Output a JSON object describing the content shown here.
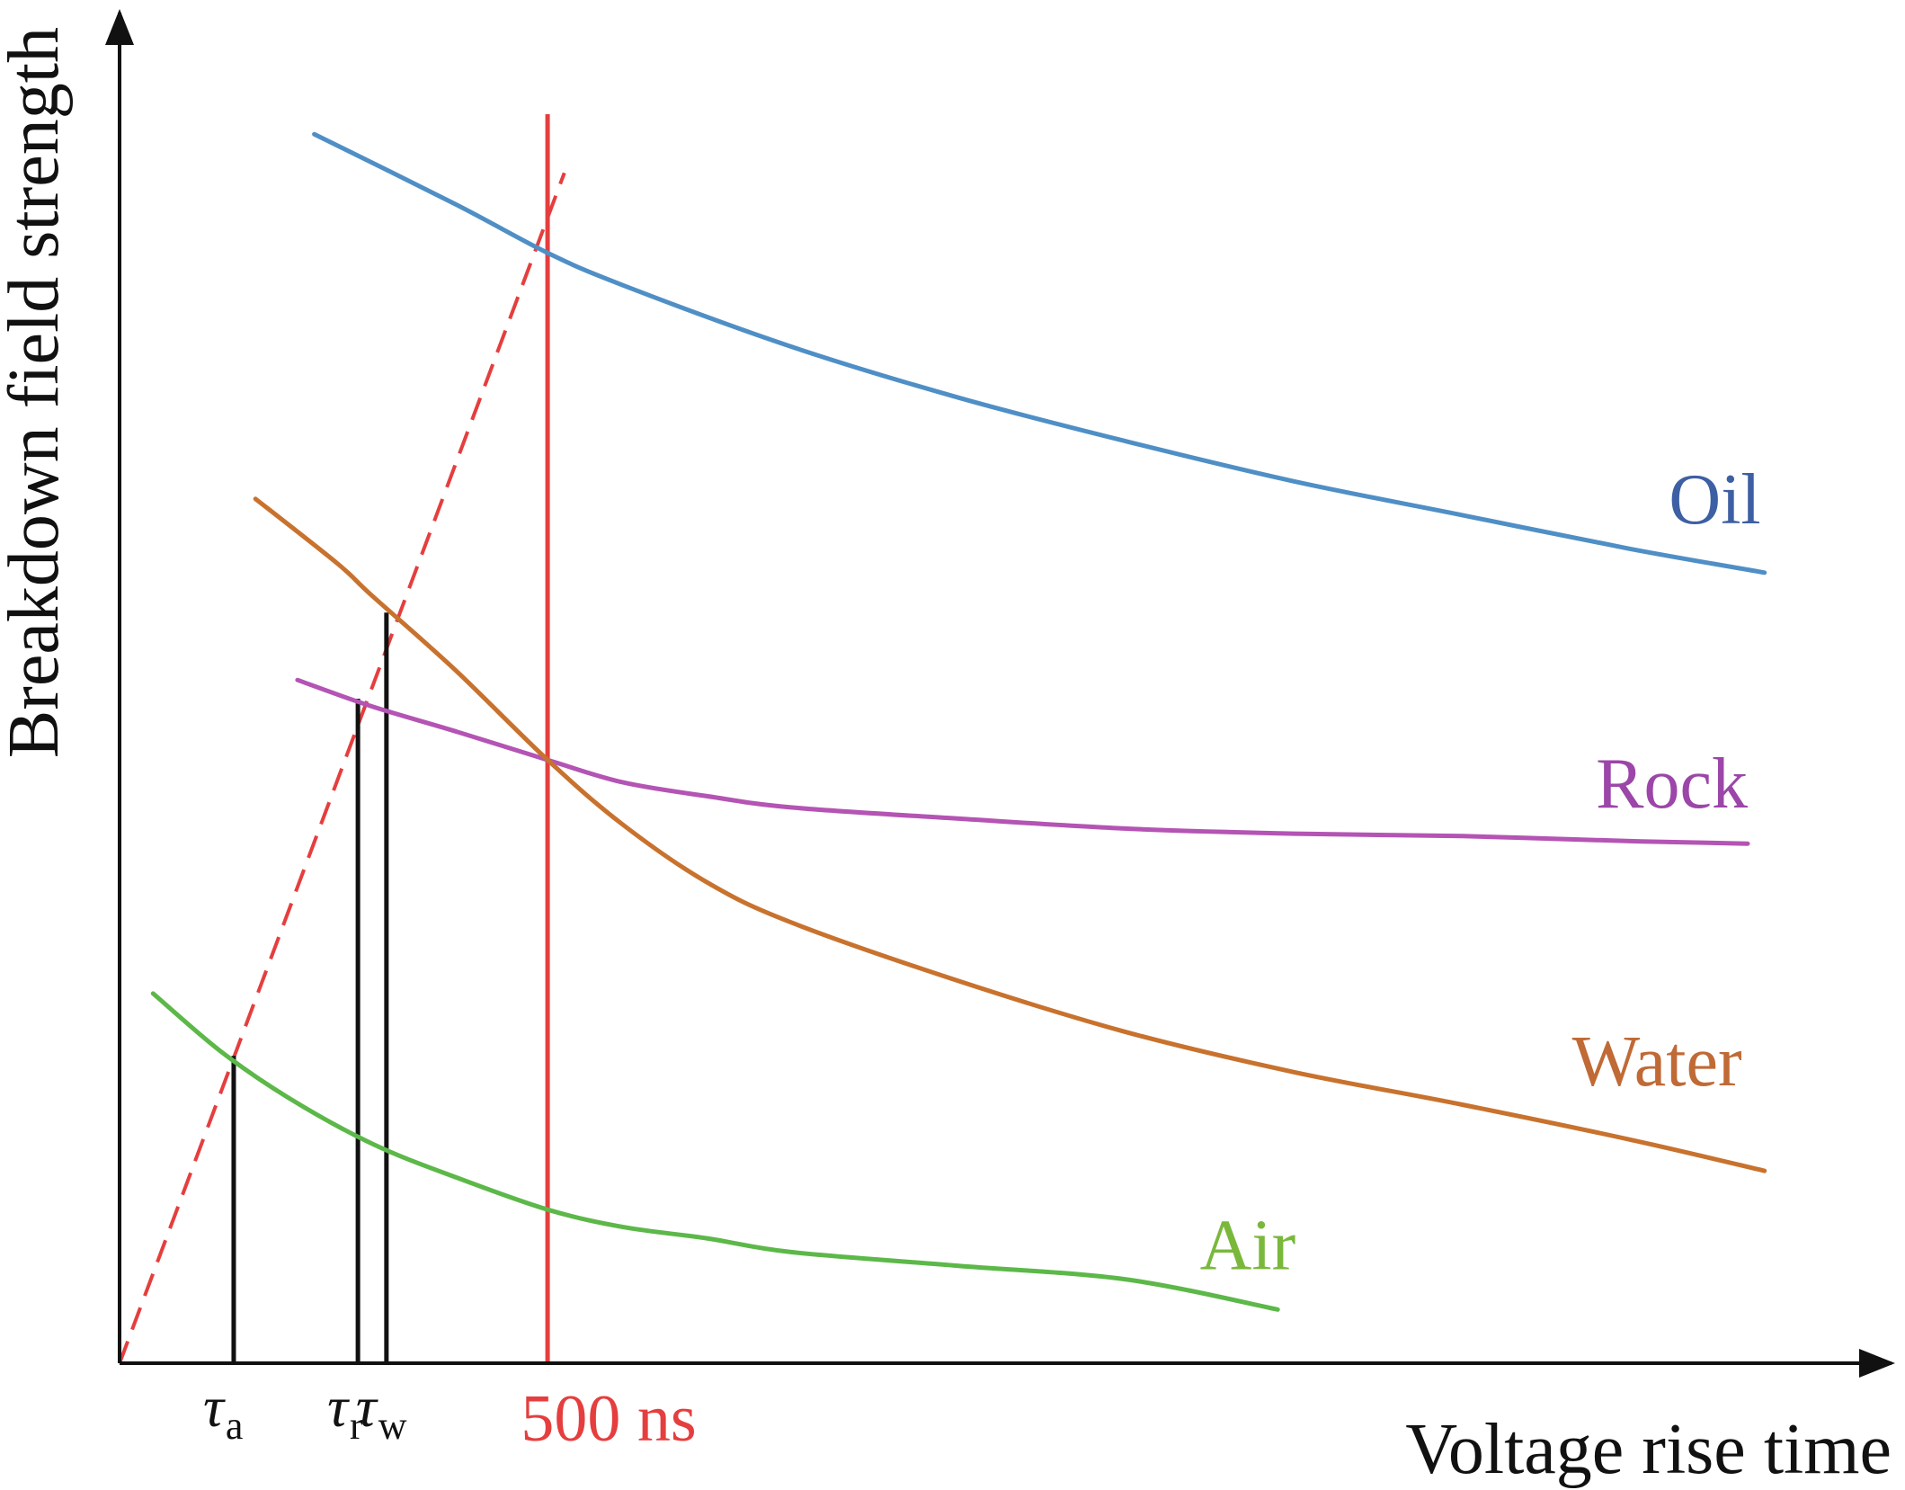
{
  "chart_data": {
    "type": "line",
    "title": "",
    "xlabel": "Voltage rise time",
    "ylabel": "Breakdown field strength",
    "xlim": [
      0,
      1000
    ],
    "ylim": [
      0,
      100
    ],
    "grid": false,
    "axes_style": "arrows, no numeric ticks (qualitative schematic)",
    "series": [
      {
        "name": "Oil",
        "color": "#4f8fc6",
        "label_color": "#3d5fa3",
        "x": [
          116,
          200,
          255,
          300,
          400,
          500,
          600,
          700,
          800,
          900,
          980
        ],
        "y": [
          98.4,
          92.8,
          88.9,
          86.3,
          81.4,
          77.3,
          73.8,
          70.6,
          67.9,
          65.2,
          63.3
        ]
      },
      {
        "name": "Rock",
        "color": "#b454b4",
        "label_color": "#9b46a8",
        "x": [
          106,
          150,
          200,
          255,
          300,
          350,
          400,
          500,
          600,
          700,
          800,
          900,
          970
        ],
        "y": [
          54.7,
          52.6,
          50.6,
          48.3,
          46.5,
          45.4,
          44.5,
          43.6,
          42.8,
          42.4,
          42.2,
          41.8,
          41.6
        ]
      },
      {
        "name": "Water",
        "color": "#c8722e",
        "label_color": "#c06a36",
        "x": [
          81,
          130,
          150,
          200,
          255,
          300,
          350,
          400,
          500,
          600,
          700,
          800,
          900,
          980
        ],
        "y": [
          69.2,
          64.0,
          61.5,
          55.5,
          48.3,
          43.1,
          38.5,
          35.3,
          30.6,
          26.5,
          23.3,
          20.7,
          17.9,
          15.4
        ]
      },
      {
        "name": "Air",
        "color": "#5cb848",
        "label_color": "#7ab83c",
        "x": [
          20,
          60,
          100,
          150,
          200,
          255,
          300,
          350,
          400,
          500,
          600,
          690
        ],
        "y": [
          29.6,
          25.0,
          21.3,
          17.6,
          14.9,
          12.3,
          10.9,
          10.0,
          8.9,
          7.8,
          6.7,
          4.3
        ]
      }
    ],
    "guide_lines": [
      {
        "name": "rise-time ramp",
        "style": "dashed",
        "color": "#e53e3e",
        "x": [
          0,
          265
        ],
        "y": [
          0,
          95.3
        ]
      },
      {
        "name": "500 ns limit",
        "style": "solid",
        "color": "#e53e3e",
        "x": 255,
        "ymin": 0,
        "ymax": 100
      }
    ],
    "drop_lines": [
      {
        "name": "tau_a",
        "x": 68,
        "y": 24.6
      },
      {
        "name": "tau_r",
        "x": 142,
        "y": 53.2
      },
      {
        "name": "tau_w",
        "x": 159,
        "y": 60.1
      }
    ],
    "x_tick_labels": [
      {
        "symbol": "τ",
        "sub": "a",
        "x": 68
      },
      {
        "symbol": "τ",
        "sub": "r",
        "x": 142
      },
      {
        "symbol": "τ",
        "sub": "w",
        "x": 159
      },
      {
        "text": "500 ns",
        "x": 255,
        "color": "#e53e3e"
      }
    ]
  }
}
